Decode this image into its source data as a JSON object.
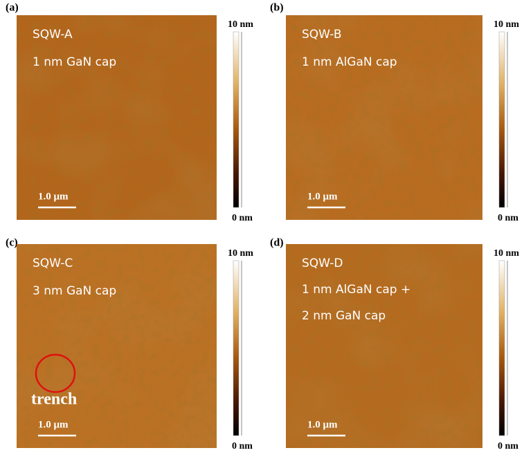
{
  "panels": [
    {
      "label": "(a)",
      "lines": [
        "SQW-A",
        "1 nm GaN cap"
      ],
      "scale_bar": "1.0 μm",
      "colorbar": {
        "max": "10 nm",
        "min": "0 nm"
      }
    },
    {
      "label": "(b)",
      "lines": [
        "SQW-B",
        "1 nm AlGaN cap"
      ],
      "scale_bar": "1.0 μm",
      "colorbar": {
        "max": "10 nm",
        "min": "0 nm"
      }
    },
    {
      "label": "(c)",
      "lines": [
        "SQW-C",
        "3 nm GaN cap"
      ],
      "scale_bar": "1.0 μm",
      "colorbar": {
        "max": "10 nm",
        "min": "0 nm"
      },
      "annotation": "trench"
    },
    {
      "label": "(d)",
      "lines": [
        "SQW-D",
        "1 nm AlGaN cap +",
        "2 nm GaN cap"
      ],
      "scale_bar": "1.0 μm",
      "colorbar": {
        "max": "10 nm",
        "min": "0 nm"
      }
    }
  ]
}
